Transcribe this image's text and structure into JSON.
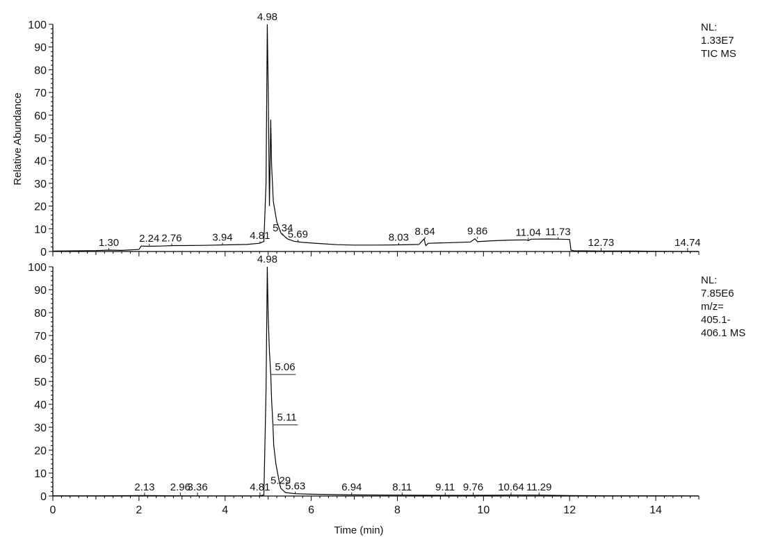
{
  "chart_data": [
    {
      "type": "line",
      "panel": "top",
      "ylabel": "Relative Abundance",
      "yticks": [
        "0",
        "10",
        "20",
        "30",
        "40",
        "50",
        "60",
        "70",
        "80",
        "90",
        "100"
      ],
      "ylim": [
        0,
        100
      ],
      "xlim": [
        0,
        15
      ],
      "grid": false,
      "info": [
        "NL:",
        "1.33E7",
        "TIC  MS"
      ],
      "series": [
        {
          "x": [
            0.0,
            1.0,
            1.3,
            1.6,
            2.0,
            2.05,
            2.2,
            2.5,
            2.8,
            3.0,
            3.5,
            4.0,
            4.5,
            4.8,
            4.9,
            4.95,
            4.98,
            5.0,
            5.03,
            5.06,
            5.08,
            5.12,
            5.2,
            5.3,
            5.45,
            5.6,
            5.8,
            6.2,
            6.6,
            7.0,
            7.5,
            8.0,
            8.5,
            8.62,
            8.66,
            8.72,
            8.9,
            9.3,
            9.7,
            9.8,
            9.86,
            9.92,
            10.2,
            10.6,
            11.0,
            11.04,
            11.1,
            11.5,
            11.8,
            12.0,
            12.03,
            12.1,
            12.73,
            13.5,
            14.0,
            14.5,
            14.74,
            15.0
          ],
          "y": [
            0.2,
            0.4,
            0.6,
            0.5,
            0.9,
            2.4,
            2.3,
            2.4,
            2.6,
            2.6,
            2.7,
            2.9,
            3.1,
            3.6,
            4.4,
            30,
            100,
            72,
            20,
            58,
            38,
            22,
            13,
            8,
            5.5,
            4.5,
            4.0,
            3.5,
            3.0,
            2.8,
            2.8,
            2.9,
            3.1,
            5.5,
            2.6,
            3.6,
            3.7,
            3.9,
            4.2,
            5.6,
            4.3,
            4.4,
            4.7,
            5.0,
            5.1,
            4.8,
            5.4,
            5.5,
            5.4,
            5.3,
            0.6,
            0.3,
            0.2,
            0.2,
            0.1,
            0.05,
            0.0,
            0.0
          ]
        }
      ],
      "peak_labels": [
        {
          "text": "4.98",
          "x": 4.98,
          "y": 100
        },
        {
          "text": "1.30",
          "x": 1.3,
          "y": 0.6
        },
        {
          "text": "2.24",
          "x": 2.24,
          "y": 2.4
        },
        {
          "text": "2.76",
          "x": 2.76,
          "y": 2.6
        },
        {
          "text": "3.94",
          "x": 3.94,
          "y": 2.9
        },
        {
          "text": "4.81",
          "x": 4.81,
          "y": 3.6
        },
        {
          "text": "5.34",
          "x": 5.34,
          "y": 7.0
        },
        {
          "text": "5.69",
          "x": 5.69,
          "y": 4.3
        },
        {
          "text": "8.03",
          "x": 8.03,
          "y": 2.9
        },
        {
          "text": "8.64",
          "x": 8.64,
          "y": 5.5
        },
        {
          "text": "9.86",
          "x": 9.86,
          "y": 5.6
        },
        {
          "text": "11.04",
          "x": 11.04,
          "y": 5.1
        },
        {
          "text": "11.73",
          "x": 11.73,
          "y": 5.4
        },
        {
          "text": "12.73",
          "x": 12.73,
          "y": 0.2
        },
        {
          "text": "14.74",
          "x": 14.74,
          "y": 0.0
        }
      ]
    },
    {
      "type": "line",
      "panel": "bottom",
      "ylabel": "",
      "xlabel": "Time (min)",
      "yticks": [
        "0",
        "10",
        "20",
        "30",
        "40",
        "50",
        "60",
        "70",
        "80",
        "90",
        "100"
      ],
      "xticks": [
        "0",
        "2",
        "4",
        "6",
        "8",
        "10",
        "12",
        "14"
      ],
      "ylim": [
        0,
        100
      ],
      "xlim": [
        0,
        15
      ],
      "grid": false,
      "info": [
        "NL:",
        "7.85E6",
        "m/z=",
        "405.1-",
        "406.1  MS"
      ],
      "series": [
        {
          "x": [
            0.0,
            1.0,
            2.0,
            2.13,
            2.5,
            2.96,
            3.36,
            4.0,
            4.5,
            4.81,
            4.9,
            4.95,
            4.98,
            5.0,
            5.03,
            5.06,
            5.08,
            5.11,
            5.13,
            5.18,
            5.25,
            5.29,
            5.4,
            5.63,
            6.0,
            6.94,
            8.11,
            9.11,
            9.76,
            10.64,
            11.29,
            12.0,
            13.0,
            14.0,
            15.0
          ],
          "y": [
            0.1,
            0.1,
            0.2,
            0.2,
            0.15,
            0.1,
            0.05,
            0.05,
            0.05,
            0.1,
            0.5,
            46,
            100,
            78,
            63,
            53,
            42,
            31,
            22,
            14,
            7,
            3.5,
            1.5,
            1.0,
            0.8,
            0.5,
            0.4,
            0.3,
            0.3,
            0.4,
            0.4,
            0.2,
            0.1,
            0.1,
            0.05
          ]
        }
      ],
      "peak_labels": [
        {
          "text": "4.98",
          "x": 4.98,
          "y": 100
        },
        {
          "text": "5.06",
          "x": 5.06,
          "y": 53
        },
        {
          "text": "5.11",
          "x": 5.11,
          "y": 31
        },
        {
          "text": "5.29",
          "x": 5.29,
          "y": 3.5
        },
        {
          "text": "2.13",
          "x": 2.13,
          "y": 0.2
        },
        {
          "text": "2.96",
          "x": 2.96,
          "y": 0.1
        },
        {
          "text": "3.36",
          "x": 3.36,
          "y": 0.05
        },
        {
          "text": "4.81",
          "x": 4.81,
          "y": 0.1
        },
        {
          "text": "5.63",
          "x": 5.63,
          "y": 1.0
        },
        {
          "text": "6.94",
          "x": 6.94,
          "y": 0.5
        },
        {
          "text": "8.11",
          "x": 8.11,
          "y": 0.4
        },
        {
          "text": "9.11",
          "x": 9.11,
          "y": 0.3
        },
        {
          "text": "9.76",
          "x": 9.76,
          "y": 0.3
        },
        {
          "text": "10.64",
          "x": 10.64,
          "y": 0.4
        },
        {
          "text": "11.29",
          "x": 11.29,
          "y": 0.4
        }
      ]
    }
  ]
}
